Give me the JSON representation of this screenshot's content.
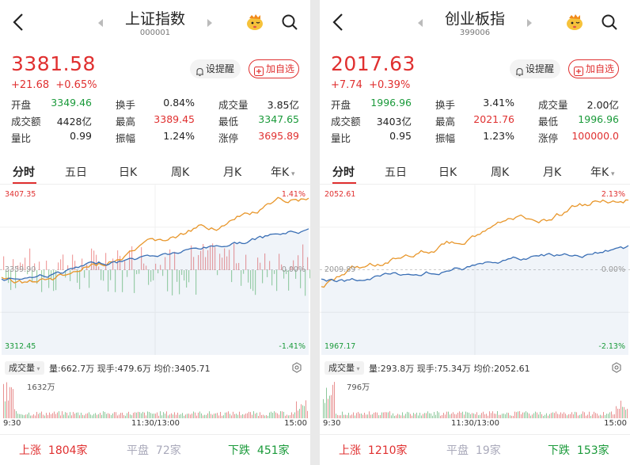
{
  "colors": {
    "up": "#e03030",
    "down": "#1a9a3a",
    "price_line": "#3a6fb5",
    "avg_line": "#e8962a"
  },
  "tabs": [
    "分时",
    "五日",
    "日K",
    "周K",
    "月K",
    "年K"
  ],
  "labels": {
    "remind": "设提醒",
    "add": "加自选",
    "open": "开盘",
    "turnover_rate": "换手",
    "volume": "成交量",
    "amount": "成交额",
    "high": "最高",
    "low": "最低",
    "vol_ratio": "量比",
    "amplitude": "振幅",
    "limit_up": "涨停",
    "vol_selector": "成交量",
    "vol_prefix": "量:",
    "cur_prefix": "现手:",
    "avg_prefix": "均价:",
    "up": "上涨",
    "flat": "平盘",
    "down": "下跌",
    "t_start": "9:30",
    "t_mid": "11:30/13:00",
    "t_end": "15:00"
  },
  "panels": [
    {
      "title": "上证指数",
      "code": "000001",
      "price": "3381.58",
      "change": "+21.68",
      "change_pct": "+0.65%",
      "open": "3349.46",
      "turnover_rate": "0.84%",
      "volume": "3.85亿",
      "amount": "4428亿",
      "high": "3389.45",
      "low": "3347.65",
      "vol_ratio": "0.99",
      "amplitude": "1.24%",
      "limit_up": "3695.89",
      "chart_top": "3407.35",
      "chart_bottom": "3312.45",
      "pct_top": "1.41%",
      "pct_bottom": "-1.41%",
      "pct_mid": "0.00%",
      "chart_mid": "3359.90",
      "vol_total": "662.7万",
      "vol_cur": "479.6万",
      "avg_price": "3405.71",
      "vol_max": "1632万",
      "up_count": "1804家",
      "flat_count": "72家",
      "down_count": "451家"
    },
    {
      "title": "创业板指",
      "code": "399006",
      "price": "2017.63",
      "change": "+7.74",
      "change_pct": "+0.39%",
      "open": "1996.96",
      "turnover_rate": "3.41%",
      "volume": "2.00亿",
      "amount": "3403亿",
      "high": "2021.76",
      "low": "1996.96",
      "vol_ratio": "0.95",
      "amplitude": "1.23%",
      "limit_up": "100000.0",
      "chart_top": "2052.61",
      "chart_bottom": "1967.17",
      "pct_top": "2.13%",
      "pct_bottom": "-2.13%",
      "pct_mid": "0.00%",
      "chart_mid": "2009.89",
      "vol_total": "293.8万",
      "vol_cur": "75.34万",
      "avg_price": "2052.61",
      "vol_max": "796万",
      "up_count": "1210家",
      "flat_count": "19家",
      "down_count": "153家"
    }
  ]
}
